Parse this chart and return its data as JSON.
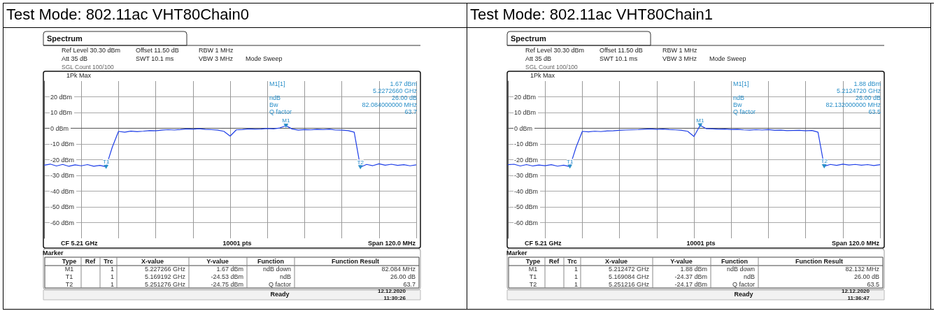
{
  "chart_data": [
    {
      "type": "line",
      "title": "Test Mode: 802.11ac VHT80Chain0",
      "ylim": [
        -70,
        30
      ],
      "categories": [
        null,
        null,
        null,
        null,
        null,
        null,
        null,
        null,
        null,
        null,
        null,
        null,
        null,
        null,
        null,
        null,
        null,
        null,
        null,
        null,
        null,
        null,
        null,
        null,
        null,
        null,
        null,
        null,
        null,
        null,
        null,
        null,
        null,
        null,
        null,
        null,
        null,
        null,
        null,
        null,
        null,
        null,
        null,
        null,
        null,
        null,
        null,
        null,
        null,
        null,
        null,
        null,
        null,
        null,
        null,
        null,
        null,
        null,
        null,
        null,
        null
      ],
      "yticks": [
        {
          "value": 20,
          "label": "20 dBm"
        },
        {
          "value": 10,
          "label": "10 dBm"
        },
        {
          "value": 0,
          "label": "0 dBm"
        },
        {
          "value": -10,
          "label": "-10 dBm"
        },
        {
          "value": -20,
          "label": "-20 dBm"
        },
        {
          "value": -30,
          "label": "-30 dBm"
        },
        {
          "value": -40,
          "label": "-40 dBm"
        },
        {
          "value": -50,
          "label": "-50 dBm"
        },
        {
          "value": -60,
          "label": "-60 dBm"
        }
      ],
      "tick_labels": "y",
      "grid": true,
      "marker": "none",
      "line_style": "solid",
      "series": [
        {
          "color": "#1f3fe8",
          "values": [
            -23.5,
            -22.8,
            -24,
            -23,
            -24.2,
            -23.3,
            -23.9,
            -23.1,
            -24.2,
            -23.6,
            -24.53,
            -12,
            -2,
            -2.5,
            -1.8,
            -2.2,
            -1.9,
            -1.5,
            -1.6,
            -1.2,
            -0.9,
            -1.1,
            -0.8,
            -0.4,
            -0.6,
            -0.3,
            -0.7,
            -0.9,
            -1.2,
            -2,
            -5,
            -1,
            -0.8,
            -0.4,
            -0.6,
            -0.5,
            -0.2,
            -0.4,
            0.2,
            1.67,
            -0.5,
            -1.2,
            -0.8,
            -1,
            -0.7,
            -0.9,
            -0.6,
            -1.1,
            -1.2,
            -1.5,
            -2.5,
            -24.75,
            -23,
            -23.8,
            -22.6,
            -23.5,
            -22.9,
            -23.6,
            -23.2,
            -23.9,
            -23.3
          ]
        }
      ],
      "annotations": [
        "Spectrum",
        "Ref Level 30.30 dBm",
        "Offset 11.50 dB",
        "RBW 1 MHz",
        "Att 35 dB",
        "SWT 10.1 ms",
        "VBW 3 MHz",
        "Mode Sweep",
        "SGL Count 100/100",
        "1Pk Max",
        "M1[1]",
        "1.67 dBm",
        "5.2272660 GHz",
        "ndB",
        "26.00 dB",
        "Bw",
        "82.084000000 MHz",
        "Q factor",
        "63.7",
        "CF 5.21 GHz",
        "10001 pts",
        "Span 120.0 MHz",
        "Marker",
        "Type",
        "Ref",
        "Trc",
        "X-value",
        "Y-value",
        "Function",
        "Function Result",
        "M1",
        "1",
        "5.227266 GHz",
        "1.67 dBm",
        "ndB down",
        "82.084 MHz",
        "T1",
        "1",
        "5.169192 GHz",
        "-24.53 dBm",
        "ndB",
        "26.00 dB",
        "T2",
        "1",
        "5.251276 GHz",
        "-24.75 dBm",
        "Q factor",
        "63.7",
        "Ready",
        "12.12.2020",
        "11:30:26",
        {
          "text": "M1",
          "y": 1.67
        },
        {
          "text": "T1",
          "y": -24.53
        },
        {
          "text": "T2",
          "y": -24.75
        }
      ]
    },
    {
      "type": "line",
      "title": "Test Mode: 802.11ac VHT80Chain1",
      "ylim": [
        -70,
        30
      ],
      "categories": [
        null,
        null,
        null,
        null,
        null,
        null,
        null,
        null,
        null,
        null,
        null,
        null,
        null,
        null,
        null,
        null,
        null,
        null,
        null,
        null,
        null,
        null,
        null,
        null,
        null,
        null,
        null,
        null,
        null,
        null,
        null,
        null,
        null,
        null,
        null,
        null,
        null,
        null,
        null,
        null,
        null,
        null,
        null,
        null,
        null,
        null,
        null,
        null,
        null,
        null,
        null,
        null,
        null,
        null,
        null,
        null,
        null,
        null,
        null,
        null,
        null
      ],
      "yticks": [
        {
          "value": 20,
          "label": "20 dBm"
        },
        {
          "value": 10,
          "label": "10 dBm"
        },
        {
          "value": 0,
          "label": "0 dBm"
        },
        {
          "value": -10,
          "label": "-10 dBm"
        },
        {
          "value": -20,
          "label": "-20 dBm"
        },
        {
          "value": -30,
          "label": "-30 dBm"
        },
        {
          "value": -40,
          "label": "-40 dBm"
        },
        {
          "value": -50,
          "label": "-50 dBm"
        },
        {
          "value": -60,
          "label": "-60 dBm"
        }
      ],
      "tick_labels": "y",
      "grid": true,
      "marker": "none",
      "line_style": "solid",
      "series": [
        {
          "color": "#1f3fe8",
          "values": [
            -23.2,
            -22.9,
            -24,
            -23.1,
            -24,
            -23.4,
            -23.8,
            -23.2,
            -24.1,
            -23.5,
            -24.37,
            -12,
            -2,
            -2.3,
            -1.9,
            -2.1,
            -1.7,
            -1.6,
            -1.3,
            -1.1,
            -1,
            -0.9,
            -0.6,
            -0.4,
            -0.7,
            -0.5,
            -0.8,
            -1,
            -1.3,
            -2,
            -5.2,
            1.88,
            -0.3,
            -0.4,
            -0.6,
            -0.5,
            -0.8,
            -0.7,
            -1,
            -1.2,
            -0.9,
            -1.1,
            -0.8,
            -1.3,
            -1.2,
            -1.5,
            -1.4,
            -1.3,
            -1.6,
            -1.4,
            -2.5,
            -24.17,
            -23,
            -23.6,
            -22.8,
            -23.4,
            -23,
            -23.5,
            -23.1,
            -23.7,
            -23.2
          ]
        }
      ],
      "annotations": [
        "Spectrum",
        "Ref Level 30.30 dBm",
        "Offset 11.50 dB",
        "RBW 1 MHz",
        "Att 35 dB",
        "SWT 10.1 ms",
        "VBW 3 MHz",
        "Mode Sweep",
        "SGL Count 100/100",
        "1Pk Max",
        "M1[1]",
        "1.88 dBm",
        "5.2124720 GHz",
        "ndB",
        "26.00 dB",
        "Bw",
        "82.132000000 MHz",
        "Q factor",
        "63.5",
        "CF 5.21 GHz",
        "10001 pts",
        "Span 120.0 MHz",
        "Marker",
        "Type",
        "Ref",
        "Trc",
        "X-value",
        "Y-value",
        "Function",
        "Function Result",
        "M1",
        "1",
        "5.212472 GHz",
        "1.88 dBm",
        "ndB down",
        "82.132 MHz",
        "T1",
        "1",
        "5.169084 GHz",
        "-24.37 dBm",
        "ndB",
        "26.00 dB",
        "T2",
        "1",
        "5.251216 GHz",
        "-24.17 dBm",
        "Q factor",
        "63.5",
        "Ready",
        "12.12.2020",
        "11:36:47",
        {
          "text": "M1",
          "y": 1.88
        },
        {
          "text": "T1",
          "y": -24.37
        },
        {
          "text": "T2",
          "y": -24.17
        }
      ]
    }
  ]
}
